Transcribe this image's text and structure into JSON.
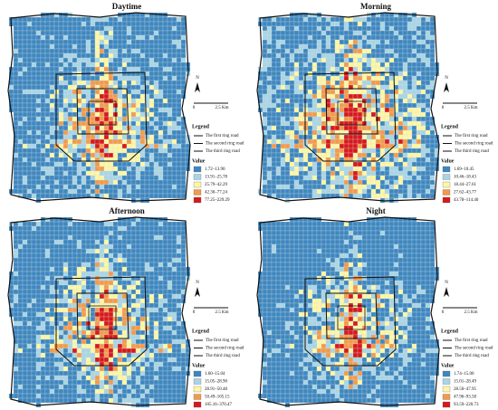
{
  "panels": [
    {
      "title": "Daytime",
      "north": "N",
      "scale": [
        "0",
        "2.5 Km"
      ],
      "legend_title": "Legend",
      "roads": [
        "The first ring road",
        "The second ring road",
        "The third ring road"
      ],
      "value_title": "Value",
      "classes": [
        "1.72–13.90",
        "13.91–25.78",
        "25.79–42.29",
        "42.30–77.24",
        "77.25–229.29"
      ]
    },
    {
      "title": "Morning",
      "north": "N",
      "scale": [
        "0",
        "2.5 Km"
      ],
      "legend_title": "Legend",
      "roads": [
        "The first ring road",
        "The second ring road",
        "The third ring road"
      ],
      "value_title": "Value",
      "classes": [
        "1.69–10.45",
        "10.46–18.43",
        "18.44–27.61",
        "27.62–43.77",
        "43.78–114.40"
      ]
    },
    {
      "title": "Afternoon",
      "north": "N",
      "scale": [
        "0",
        "2.5 Km"
      ],
      "legend_title": "Legend",
      "roads": [
        "The first ring road",
        "The second ring road",
        "The third ring road"
      ],
      "value_title": "Value",
      "classes": [
        "1.60–15.04",
        "15.05–28.90",
        "28.91–50.48",
        "50.49–105.15",
        "105.16–370.47"
      ]
    },
    {
      "title": "Night",
      "north": "N",
      "scale": [
        "0",
        "2.5 Km"
      ],
      "legend_title": "Legend",
      "roads": [
        "The first ring road",
        "The second ring road",
        "The third ring road"
      ],
      "value_title": "Value",
      "classes": [
        "1.74–15.00",
        "15.01–28.49",
        "28.50–47.95",
        "47.96–93.58",
        "93.59–220.73"
      ]
    }
  ]
}
